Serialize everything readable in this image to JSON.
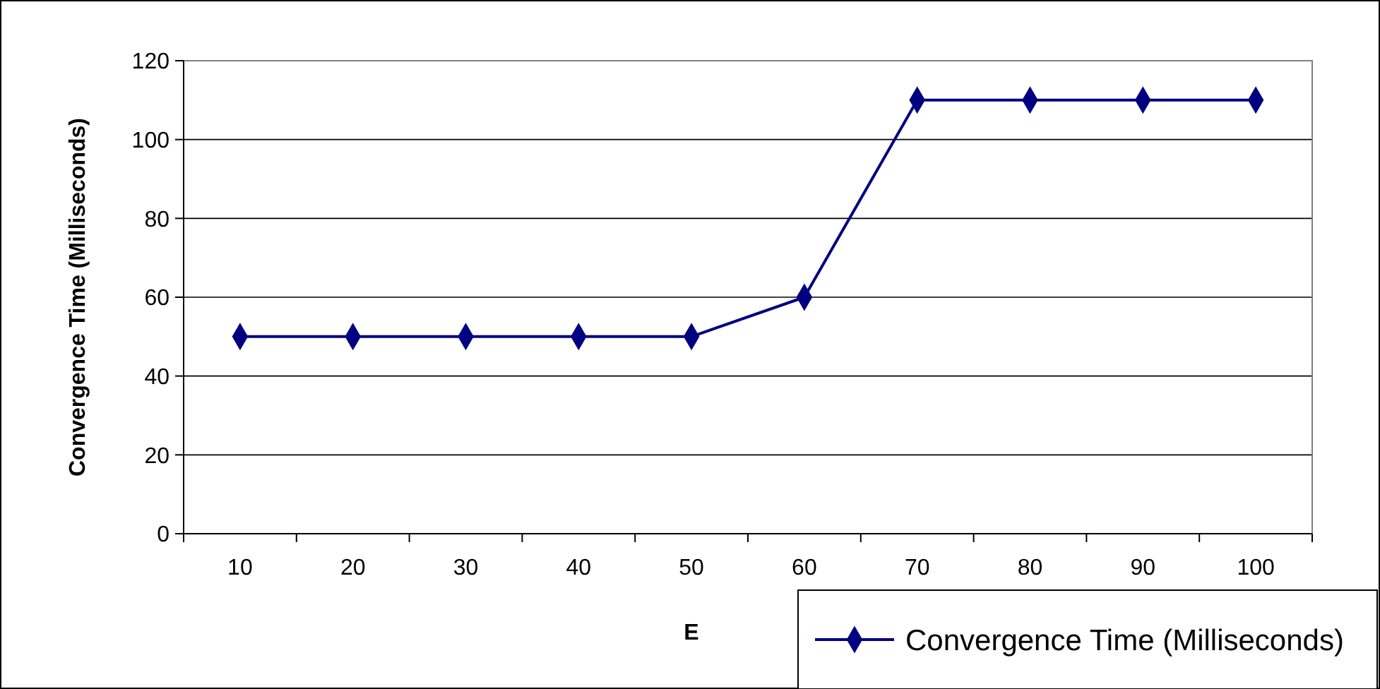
{
  "chart_data": {
    "type": "line",
    "xlabel": "E",
    "ylabel": "Convergence Time (Milliseconds)",
    "categories": [
      "10",
      "20",
      "30",
      "40",
      "50",
      "60",
      "70",
      "80",
      "90",
      "100"
    ],
    "series": [
      {
        "name": "Convergence Time (Milliseconds)",
        "color": "#000080",
        "values": [
          50,
          50,
          50,
          50,
          50,
          60,
          110,
          110,
          110,
          110
        ]
      }
    ],
    "ylim": [
      0,
      120
    ],
    "yticks": [
      0,
      20,
      40,
      60,
      80,
      100,
      120
    ],
    "grid": "y",
    "legend": "bottom right",
    "marker": "diamond"
  }
}
